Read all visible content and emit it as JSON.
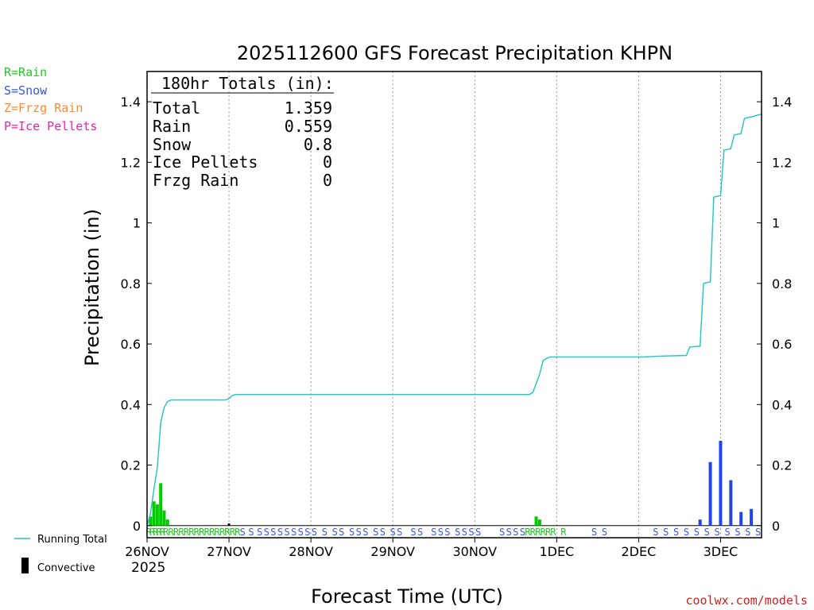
{
  "chart_data": {
    "type": "bar",
    "title": "2025112600 GFS Forecast Precipitation KHPN",
    "xlabel": "Forecast Time (UTC)",
    "ylabel": "Precipitation (in)",
    "ylim": [
      -0.04,
      1.5
    ],
    "yticks": [
      0,
      0.2,
      0.4,
      0.6,
      0.8,
      1,
      1.2,
      1.4
    ],
    "ytick_labels": [
      "0",
      "0.2",
      "0.4",
      "0.6",
      "0.8",
      "1",
      "1.2",
      "1.4"
    ],
    "xlim_hours": [
      0,
      180
    ],
    "x_ticks": [
      {
        "label": "26NOV",
        "hour": 0
      },
      {
        "label": "27NOV",
        "hour": 24
      },
      {
        "label": "28NOV",
        "hour": 48
      },
      {
        "label": "29NOV",
        "hour": 72
      },
      {
        "label": "30NOV",
        "hour": 96
      },
      {
        "label": "1DEC",
        "hour": 120
      },
      {
        "label": "2DEC",
        "hour": 144
      },
      {
        "label": "3DEC",
        "hour": 168
      }
    ],
    "year_label": "2025",
    "legend_types": [
      {
        "label": "R=Rain",
        "color": "#22cc22"
      },
      {
        "label": "S=Snow",
        "color": "#3355ee"
      },
      {
        "label": "Z=Frzg Rain",
        "color": "#ff8833"
      },
      {
        "label": "P=Ice Pellets",
        "color": "#ee22aa"
      }
    ],
    "totals": {
      "header": "180hr Totals (in):",
      "rows": [
        {
          "label": "Total",
          "value": "1.359"
        },
        {
          "label": "Rain",
          "value": "0.559"
        },
        {
          "label": "Snow",
          "value": "0.8"
        },
        {
          "label": "Ice Pellets",
          "value": "0"
        },
        {
          "label": "Frzg Rain",
          "value": "0"
        }
      ]
    },
    "series": [
      {
        "name": "Rain",
        "color": "#00cc00",
        "points": [
          [
            1,
            0.03
          ],
          [
            2,
            0.08
          ],
          [
            3,
            0.07
          ],
          [
            4,
            0.14
          ],
          [
            5,
            0.05
          ],
          [
            6,
            0.02
          ],
          [
            114,
            0.03
          ],
          [
            115,
            0.02
          ]
        ]
      },
      {
        "name": "Snow",
        "color": "#2244ee",
        "points": [
          [
            162,
            0.02
          ],
          [
            165,
            0.21
          ],
          [
            168,
            0.28
          ],
          [
            171,
            0.15
          ],
          [
            174,
            0.045
          ],
          [
            177,
            0.055
          ]
        ]
      },
      {
        "name": "Convective",
        "color": "#000000",
        "points": [
          [
            24,
            0.007
          ]
        ]
      },
      {
        "name": "Running Total",
        "color": "#22c4c4",
        "line": [
          [
            0,
            0
          ],
          [
            1,
            0.04
          ],
          [
            2,
            0.12
          ],
          [
            3,
            0.19
          ],
          [
            4,
            0.34
          ],
          [
            5,
            0.39
          ],
          [
            6,
            0.41
          ],
          [
            7,
            0.415
          ],
          [
            23,
            0.415
          ],
          [
            24,
            0.42
          ],
          [
            25,
            0.43
          ],
          [
            26,
            0.433
          ],
          [
            112,
            0.433
          ],
          [
            113,
            0.44
          ],
          [
            114,
            0.47
          ],
          [
            115,
            0.5
          ],
          [
            116,
            0.545
          ],
          [
            117,
            0.552
          ],
          [
            118,
            0.557
          ],
          [
            145,
            0.557
          ],
          [
            151,
            0.56
          ],
          [
            158,
            0.562
          ],
          [
            159,
            0.59
          ],
          [
            161,
            0.592
          ],
          [
            162,
            0.592
          ],
          [
            163,
            0.8
          ],
          [
            165,
            0.805
          ],
          [
            166,
            1.085
          ],
          [
            168,
            1.09
          ],
          [
            169,
            1.24
          ],
          [
            171,
            1.245
          ],
          [
            172,
            1.29
          ],
          [
            174,
            1.295
          ],
          [
            175,
            1.345
          ],
          [
            177,
            1.35
          ],
          [
            180,
            1.359
          ]
        ]
      }
    ],
    "type_codes": [
      {
        "hour": 0.5,
        "code": "R"
      },
      {
        "hour": 1.5,
        "code": "R"
      },
      {
        "hour": 2.5,
        "code": "R"
      },
      {
        "hour": 3.5,
        "code": "R"
      },
      {
        "hour": 4.5,
        "code": "R"
      },
      {
        "hour": 5.5,
        "code": "R"
      },
      {
        "hour": 7,
        "code": "R"
      },
      {
        "hour": 8.5,
        "code": "R"
      },
      {
        "hour": 10,
        "code": "R"
      },
      {
        "hour": 11.5,
        "code": "R"
      },
      {
        "hour": 13,
        "code": "R"
      },
      {
        "hour": 14.5,
        "code": "R"
      },
      {
        "hour": 16,
        "code": "R"
      },
      {
        "hour": 17.5,
        "code": "R"
      },
      {
        "hour": 19,
        "code": "R"
      },
      {
        "hour": 20.5,
        "code": "R"
      },
      {
        "hour": 22,
        "code": "R"
      },
      {
        "hour": 23.5,
        "code": "R"
      },
      {
        "hour": 25,
        "code": "R"
      },
      {
        "hour": 26.5,
        "code": "R"
      },
      {
        "hour": 28,
        "code": "S"
      },
      {
        "hour": 30.5,
        "code": "S"
      },
      {
        "hour": 33,
        "code": "S"
      },
      {
        "hour": 35,
        "code": "S"
      },
      {
        "hour": 37,
        "code": "S"
      },
      {
        "hour": 39,
        "code": "S"
      },
      {
        "hour": 41,
        "code": "S"
      },
      {
        "hour": 43,
        "code": "S"
      },
      {
        "hour": 45,
        "code": "S"
      },
      {
        "hour": 47,
        "code": "S"
      },
      {
        "hour": 49,
        "code": "S"
      },
      {
        "hour": 52,
        "code": "S"
      },
      {
        "hour": 55,
        "code": "S"
      },
      {
        "hour": 57,
        "code": "S"
      },
      {
        "hour": 60,
        "code": "S"
      },
      {
        "hour": 62,
        "code": "S"
      },
      {
        "hour": 64,
        "code": "S"
      },
      {
        "hour": 67,
        "code": "S"
      },
      {
        "hour": 69,
        "code": "S"
      },
      {
        "hour": 72,
        "code": "S"
      },
      {
        "hour": 74,
        "code": "S"
      },
      {
        "hour": 78,
        "code": "S"
      },
      {
        "hour": 80,
        "code": "S"
      },
      {
        "hour": 84,
        "code": "S"
      },
      {
        "hour": 86,
        "code": "S"
      },
      {
        "hour": 88,
        "code": "S"
      },
      {
        "hour": 91,
        "code": "S"
      },
      {
        "hour": 93,
        "code": "S"
      },
      {
        "hour": 95,
        "code": "S"
      },
      {
        "hour": 97,
        "code": "S"
      },
      {
        "hour": 104,
        "code": "S"
      },
      {
        "hour": 106,
        "code": "S"
      },
      {
        "hour": 108,
        "code": "S"
      },
      {
        "hour": 110,
        "code": "S"
      },
      {
        "hour": 111.5,
        "code": "R"
      },
      {
        "hour": 113,
        "code": "R"
      },
      {
        "hour": 114.5,
        "code": "R"
      },
      {
        "hour": 116,
        "code": "R"
      },
      {
        "hour": 117.5,
        "code": "R"
      },
      {
        "hour": 119,
        "code": "R"
      },
      {
        "hour": 122,
        "code": "R"
      },
      {
        "hour": 131,
        "code": "S"
      },
      {
        "hour": 134,
        "code": "S"
      },
      {
        "hour": 149,
        "code": "S"
      },
      {
        "hour": 152,
        "code": "S"
      },
      {
        "hour": 155,
        "code": "S"
      },
      {
        "hour": 158,
        "code": "S"
      },
      {
        "hour": 161,
        "code": "S"
      },
      {
        "hour": 164,
        "code": "S"
      },
      {
        "hour": 167,
        "code": "S"
      },
      {
        "hour": 170,
        "code": "S"
      },
      {
        "hour": 173,
        "code": "S"
      },
      {
        "hour": 176,
        "code": "S"
      },
      {
        "hour": 179,
        "code": "S"
      }
    ],
    "bottom_legend": [
      {
        "label": "Running Total",
        "kind": "line",
        "color": "#22c4c4"
      },
      {
        "label": "Convective",
        "kind": "bar",
        "color": "#000000"
      }
    ],
    "credit": "coolwx.com/models"
  }
}
